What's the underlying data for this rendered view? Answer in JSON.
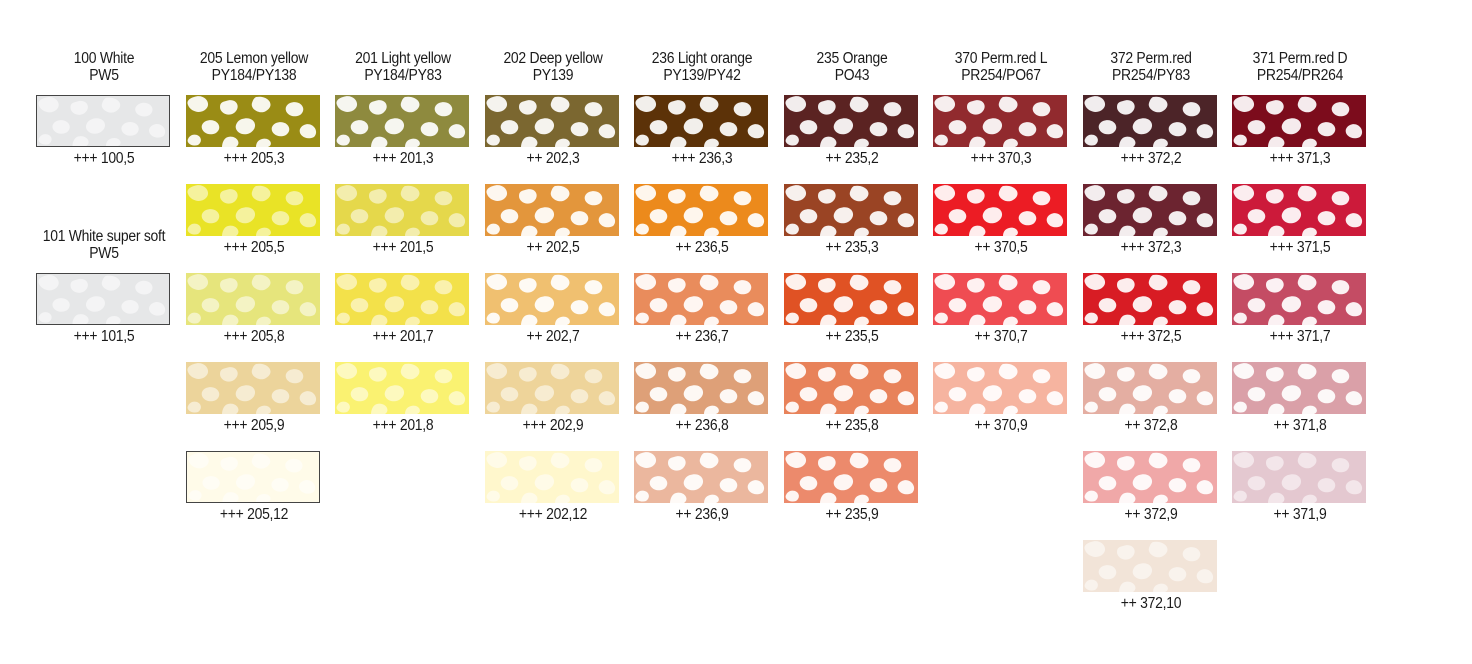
{
  "columns": [
    {
      "name_line1": "100 White",
      "name_line2": "PW5",
      "swatches": [
        {
          "code": "+++ 100,5",
          "color": "#e6e7e8",
          "bordered": true
        }
      ]
    },
    {
      "name_line1": "205 Lemon yellow",
      "name_line2": "PY184/PY138",
      "swatches": [
        {
          "code": "+++ 205,3",
          "color": "#9a8c15"
        },
        {
          "code": "+++ 205,5",
          "color": "#e9e326"
        },
        {
          "code": "+++ 205,8",
          "color": "#e6e57c"
        },
        {
          "code": "+++ 205,9",
          "color": "#ecd49b"
        },
        {
          "code": "+++ 205,12",
          "color": "#fffbe9",
          "bordered": true
        }
      ]
    },
    {
      "name_line1": "201 Light yellow",
      "name_line2": "PY184/PY83",
      "swatches": [
        {
          "code": "+++ 201,3",
          "color": "#8e8a3e"
        },
        {
          "code": "+++ 201,5",
          "color": "#e5d84b"
        },
        {
          "code": "+++ 201,7",
          "color": "#f3e14a"
        },
        {
          "code": "+++ 201,8",
          "color": "#faf271"
        }
      ]
    },
    {
      "name_line1": "202 Deep yellow",
      "name_line2": "PY139",
      "swatches": [
        {
          "code": "++ 202,3",
          "color": "#7b6730"
        },
        {
          "code": "++ 202,5",
          "color": "#e3963c"
        },
        {
          "code": "++ 202,7",
          "color": "#f0c070"
        },
        {
          "code": "+++ 202,9",
          "color": "#eed49a"
        },
        {
          "code": "+++ 202,12",
          "color": "#fff7cc"
        }
      ]
    },
    {
      "name_line1": "236 Light orange",
      "name_line2": "PY139/PY42",
      "swatches": [
        {
          "code": "+++ 236,3",
          "color": "#5c3208"
        },
        {
          "code": "++ 236,5",
          "color": "#ec8a1c"
        },
        {
          "code": "++ 236,7",
          "color": "#e98c5c"
        },
        {
          "code": "++ 236,8",
          "color": "#dea078"
        },
        {
          "code": "++ 236,9",
          "color": "#ebb79e"
        }
      ]
    },
    {
      "name_line1": "235 Orange",
      "name_line2": "PO43",
      "swatches": [
        {
          "code": "++ 235,2",
          "color": "#5b2322"
        },
        {
          "code": "++ 235,3",
          "color": "#9a4424"
        },
        {
          "code": "++ 235,5",
          "color": "#e05224"
        },
        {
          "code": "++ 235,8",
          "color": "#e8825a"
        },
        {
          "code": "++ 235,9",
          "color": "#ec8a6c"
        }
      ]
    },
    {
      "name_line1": "370 Perm.red L",
      "name_line2": "PR254/PO67",
      "swatches": [
        {
          "code": "+++ 370,3",
          "color": "#912a2e"
        },
        {
          "code": "++ 370,5",
          "color": "#ec1c24"
        },
        {
          "code": "++ 370,7",
          "color": "#ef4c52"
        },
        {
          "code": "++ 370,9",
          "color": "#f6b4a0"
        }
      ]
    },
    {
      "name_line1": "372 Perm.red",
      "name_line2": "PR254/PY83",
      "swatches": [
        {
          "code": "+++ 372,2",
          "color": "#4c2428"
        },
        {
          "code": "+++ 372,3",
          "color": "#6c2430"
        },
        {
          "code": "+++ 372,5",
          "color": "#d81c24"
        },
        {
          "code": "++ 372,8",
          "color": "#e4aea2"
        },
        {
          "code": "++ 372,9",
          "color": "#f0a8a8"
        },
        {
          "code": "++ 372,10",
          "color": "#f2e4d8"
        }
      ]
    },
    {
      "name_line1": "371 Perm.red D",
      "name_line2": "PR254/PR264",
      "swatches": [
        {
          "code": "+++ 371,3",
          "color": "#7c0c1c"
        },
        {
          "code": "+++ 371,5",
          "color": "#cc1a3a"
        },
        {
          "code": "+++ 371,7",
          "color": "#c44c64"
        },
        {
          "code": "++ 371,8",
          "color": "#daa0a8"
        },
        {
          "code": "++ 371,9",
          "color": "#e4c8d0"
        }
      ]
    }
  ],
  "special": {
    "column_index": 0,
    "name_line1": "101 White super soft",
    "name_line2": "PW5",
    "code": "+++ 101,5",
    "color": "#e6e7e8",
    "bordered": true
  }
}
